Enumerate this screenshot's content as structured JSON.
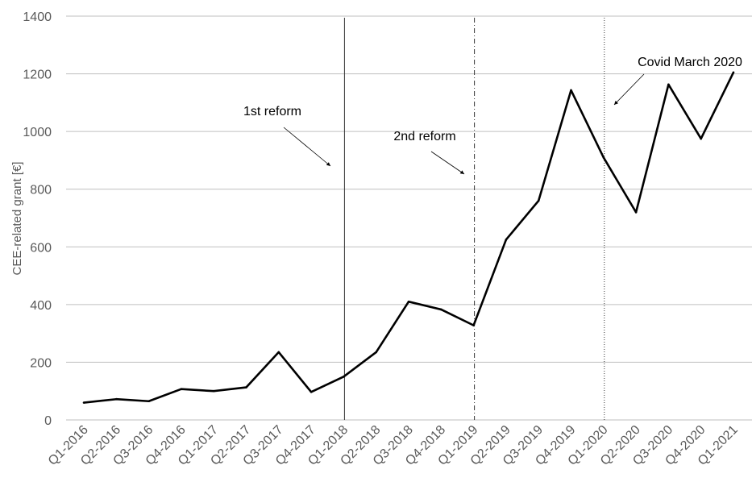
{
  "chart_data": {
    "type": "line",
    "title": "",
    "xlabel": "",
    "ylabel": "CEE-related grant [€]",
    "ylim": [
      0,
      1400
    ],
    "yticks": [
      0,
      200,
      400,
      600,
      800,
      1000,
      1200,
      1400
    ],
    "grid": true,
    "categories": [
      "Q1-2016",
      "Q2-2016",
      "Q3-2016",
      "Q4-2016",
      "Q1-2017",
      "Q2-2017",
      "Q3-2017",
      "Q4-2017",
      "Q1-2018",
      "Q2-2018",
      "Q3-2018",
      "Q4-2018",
      "Q1-2019",
      "Q2-2019",
      "Q3-2019",
      "Q4-2019",
      "Q1-2020",
      "Q2-2020",
      "Q3-2020",
      "Q4-2020",
      "Q1-2021"
    ],
    "series": [
      {
        "values": [
          60,
          72,
          65,
          107,
          100,
          113,
          235,
          97,
          150,
          235,
          410,
          383,
          328,
          625,
          760,
          1143,
          910,
          720,
          1163,
          975,
          1205
        ]
      }
    ],
    "vertical_lines": [
      {
        "category": "Q1-2018",
        "style": "solid"
      },
      {
        "category": "Q1-2019",
        "style": "dashdot"
      },
      {
        "category": "Q1-2020",
        "style": "dotted"
      }
    ],
    "annotations": [
      {
        "text": "1st reform",
        "category": "Q1-2018"
      },
      {
        "text": "2nd reform",
        "category": "Q1-2019"
      },
      {
        "text": "Covid March 2020",
        "category": "Q1-2020"
      }
    ],
    "colors": {
      "line": "#000000",
      "grid": "#bfbfbf",
      "tick_text": "#595959"
    }
  }
}
